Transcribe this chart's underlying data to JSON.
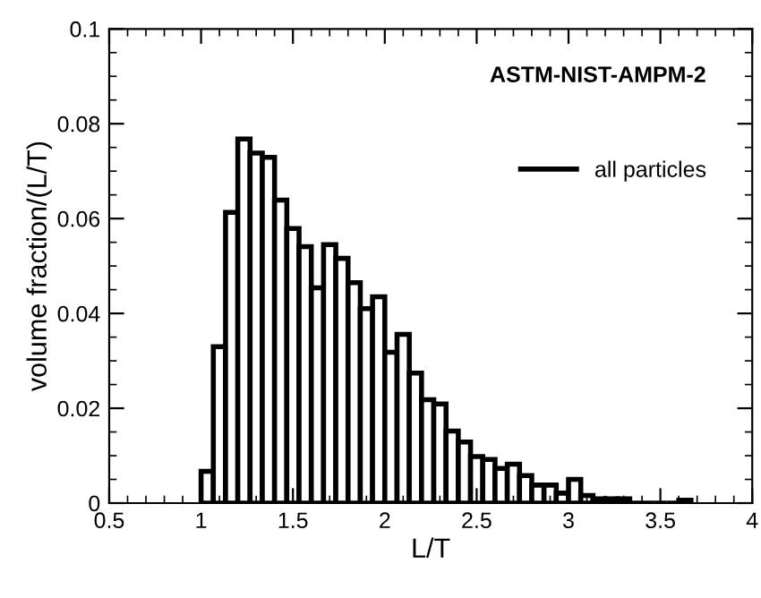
{
  "chart_data": {
    "type": "histogram",
    "title": "ASTM-NIST-AMPM-2",
    "xlabel": "L/T",
    "ylabel": "volume fraction/(L/T)",
    "bins": [
      1.0,
      1.0667,
      1.1333,
      1.2,
      1.2667,
      1.3333,
      1.4,
      1.4667,
      1.5333,
      1.6,
      1.6667,
      1.7333,
      1.8,
      1.8667,
      1.9333,
      2.0,
      2.0667,
      2.1333,
      2.2,
      2.2667,
      2.3333,
      2.4,
      2.4667,
      2.5333,
      2.6,
      2.6667,
      2.7333,
      2.8,
      2.8667,
      2.9333,
      3.0,
      3.0667,
      3.1333,
      3.2,
      3.2667,
      3.3333,
      3.4,
      3.4667,
      3.5333,
      3.6,
      3.6667
    ],
    "series": [
      {
        "name": "all particles",
        "color": "#000000",
        "values": [
          0.0067,
          0.033,
          0.0613,
          0.0768,
          0.0738,
          0.0729,
          0.0639,
          0.0579,
          0.0541,
          0.0454,
          0.0545,
          0.0516,
          0.0465,
          0.041,
          0.0435,
          0.0318,
          0.0356,
          0.0274,
          0.0218,
          0.0209,
          0.0152,
          0.0129,
          0.0098,
          0.0092,
          0.0073,
          0.0082,
          0.0058,
          0.0038,
          0.0038,
          0.0021,
          0.005,
          0.0016,
          0.0009,
          0.0009,
          0.0009,
          null,
          null,
          null,
          null,
          0.0006
        ]
      }
    ],
    "xlim": [
      0.5,
      4
    ],
    "ylim": [
      0,
      0.1
    ],
    "xticks": [
      0.5,
      {
        "value": 0.6,
        "label": null
      },
      {
        "value": 0.7,
        "label": null
      },
      {
        "value": 0.8,
        "label": null
      },
      {
        "value": 0.9,
        "label": null
      },
      1,
      {
        "value": 1.1,
        "label": null
      },
      {
        "value": 1.2,
        "label": null
      },
      {
        "value": 1.3,
        "label": null
      },
      {
        "value": 1.4,
        "label": null
      },
      1.5,
      {
        "value": 1.6,
        "label": null
      },
      {
        "value": 1.7,
        "label": null
      },
      {
        "value": 1.8,
        "label": null
      },
      {
        "value": 1.9,
        "label": null
      },
      2,
      {
        "value": 2.1,
        "label": null
      },
      {
        "value": 2.2,
        "label": null
      },
      {
        "value": 2.3,
        "label": null
      },
      {
        "value": 2.4,
        "label": null
      },
      2.5,
      {
        "value": 2.6,
        "label": null
      },
      {
        "value": 2.7,
        "label": null
      },
      {
        "value": 2.8,
        "label": null
      },
      {
        "value": 2.9,
        "label": null
      },
      3,
      {
        "value": 3.1,
        "label": null
      },
      {
        "value": 3.2,
        "label": null
      },
      {
        "value": 3.3,
        "label": null
      },
      {
        "value": 3.4,
        "label": null
      },
      3.5,
      {
        "value": 3.6,
        "label": null
      },
      {
        "value": 3.7,
        "label": null
      },
      {
        "value": 3.8,
        "label": null
      },
      {
        "value": 3.9,
        "label": null
      },
      4
    ],
    "yticks": [
      0,
      {
        "value": 0.005,
        "label": null
      },
      0.02,
      {
        "value": 0.01,
        "label": null
      },
      {
        "value": 0.015,
        "label": null
      },
      {
        "value": 0.025,
        "label": null
      },
      {
        "value": 0.03,
        "label": null
      },
      {
        "value": 0.035,
        "label": null
      },
      0.04,
      {
        "value": 0.045,
        "label": null
      },
      {
        "value": 0.05,
        "label": null
      },
      {
        "value": 0.055,
        "label": null
      },
      0.06,
      {
        "value": 0.065,
        "label": null
      },
      {
        "value": 0.07,
        "label": null
      },
      {
        "value": 0.075,
        "label": null
      },
      0.08,
      {
        "value": 0.085,
        "label": null
      },
      {
        "value": 0.09,
        "label": null
      },
      {
        "value": 0.095,
        "label": null
      },
      0.1
    ],
    "legend": "right",
    "grid": false
  }
}
